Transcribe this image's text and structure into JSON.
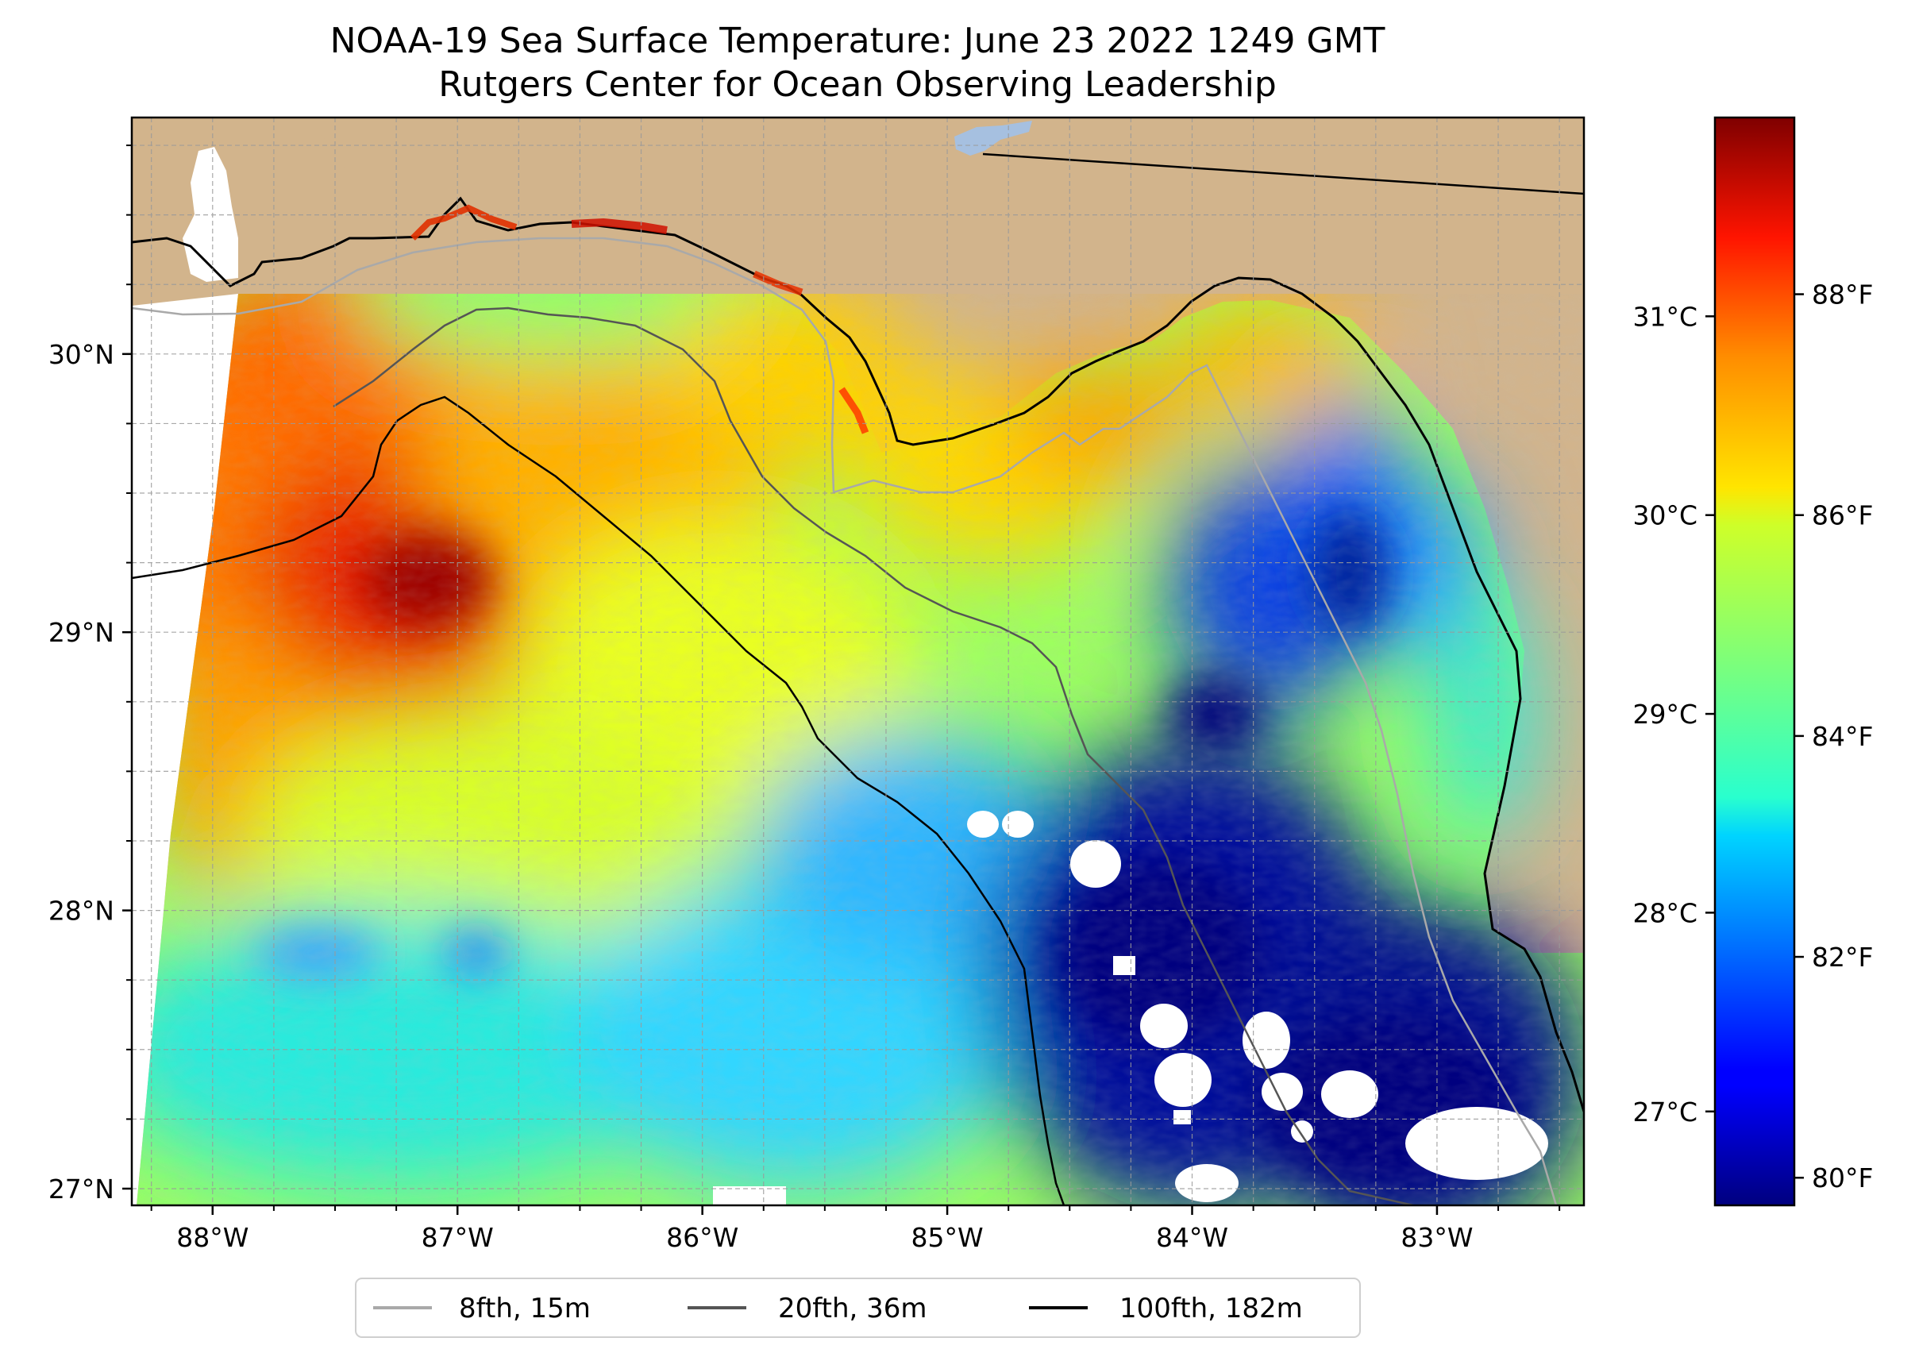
{
  "title_line1": "NOAA-19 Sea Surface Temperature: June 23 2022 1249 GMT",
  "title_line2": "Rutgers Center for Ocean Observing Leadership",
  "map": {
    "lon_range": [
      -88.33,
      -82.4
    ],
    "lat_range": [
      26.94,
      30.85
    ],
    "lon_ticks": [
      {
        "value": -88,
        "label": "88°W"
      },
      {
        "value": -87,
        "label": "87°W"
      },
      {
        "value": -86,
        "label": "86°W"
      },
      {
        "value": -85,
        "label": "85°W"
      },
      {
        "value": -84,
        "label": "84°W"
      },
      {
        "value": -83,
        "label": "83°W"
      }
    ],
    "lat_ticks": [
      {
        "value": 27,
        "label": "27°N"
      },
      {
        "value": 28,
        "label": "28°N"
      },
      {
        "value": 29,
        "label": "29°N"
      },
      {
        "value": 30,
        "label": "30°N"
      }
    ],
    "gridlines": true,
    "land_color": "#d2b48c",
    "water_feature_color": "#a6c0e0"
  },
  "colorbar": {
    "colormap": "jet",
    "celsius_ticks": [
      {
        "value": 27,
        "label": "27°C"
      },
      {
        "value": 28,
        "label": "28°C"
      },
      {
        "value": 29,
        "label": "29°C"
      },
      {
        "value": 30,
        "label": "30°C"
      },
      {
        "value": 31,
        "label": "31°C"
      }
    ],
    "fahrenheit_ticks": [
      {
        "value": 80,
        "label": "80°F"
      },
      {
        "value": 82,
        "label": "82°F"
      },
      {
        "value": 84,
        "label": "84°F"
      },
      {
        "value": 86,
        "label": "86°F"
      },
      {
        "value": 88,
        "label": "88°F"
      }
    ],
    "range_f": [
      79.75,
      89.6
    ]
  },
  "legend": {
    "placement": "bottom-center",
    "items": [
      {
        "label": "8fth, 15m",
        "color": "#a9a9a9"
      },
      {
        "label": "20fth, 36m",
        "color": "#555555"
      },
      {
        "label": "100fth, 182m",
        "color": "#000000"
      }
    ]
  }
}
